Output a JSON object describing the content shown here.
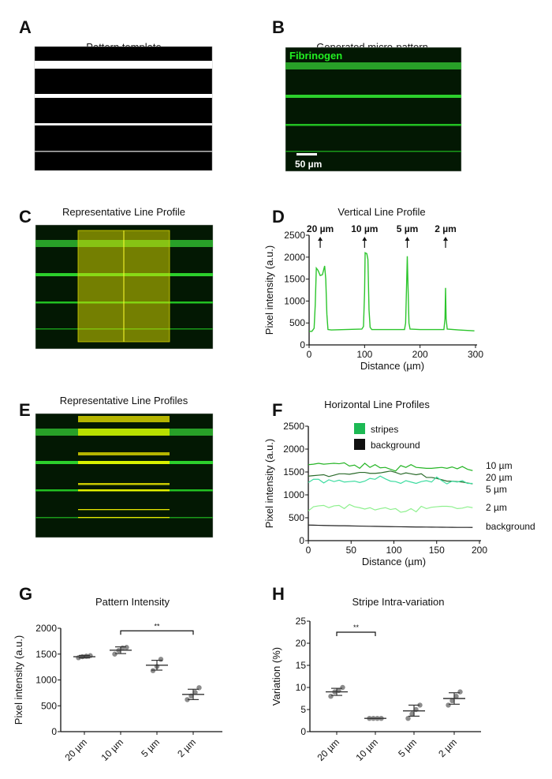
{
  "figure": {
    "panels": {
      "A": {
        "label": "A",
        "title": "Pattern template"
      },
      "B": {
        "label": "B",
        "title": "Generated micro-pattern",
        "stain_label": "Fibrinogen",
        "scale_bar_label": "50 µm"
      },
      "C": {
        "label": "C",
        "title": "Representative Line Profile"
      },
      "D": {
        "label": "D"
      },
      "E": {
        "label": "E",
        "title": "Representative Line Profiles"
      },
      "F": {
        "label": "F"
      },
      "G": {
        "label": "G"
      },
      "H": {
        "label": "H"
      }
    },
    "colors": {
      "stripe_green": "#22c322",
      "overlay_yellow": "#e6e600",
      "line_green": "#2cc52c"
    }
  },
  "chart_data": [
    {
      "id": "D",
      "type": "line",
      "title": "Vertical Line Profile",
      "xlabel": "Distance (µm)",
      "ylabel": "Pixel intensity (a.u.)",
      "xlim": [
        0,
        300
      ],
      "ylim": [
        0,
        2500
      ],
      "xticks": [
        "0",
        "100",
        "200",
        "300"
      ],
      "yticks": [
        "0",
        "500",
        "1000",
        "1500",
        "2000",
        "2500"
      ],
      "annotations": [
        {
          "text": "20 µm",
          "x": 20
        },
        {
          "text": "10 µm",
          "x": 100
        },
        {
          "text": "5 µm",
          "x": 177
        },
        {
          "text": "2 µm",
          "x": 246
        }
      ],
      "series": [
        {
          "name": "profile",
          "color": "#2cc52c",
          "x": [
            0,
            5,
            9,
            11,
            13,
            16,
            20,
            24,
            28,
            30,
            32,
            34,
            40,
            95,
            98,
            100,
            101,
            104,
            106,
            108,
            110,
            113,
            172,
            174,
            176,
            177,
            178,
            180,
            182,
            200,
            243,
            245,
            246,
            247,
            249,
            270,
            298
          ],
          "y": [
            310,
            310,
            380,
            900,
            1750,
            1700,
            1580,
            1600,
            1800,
            1500,
            700,
            350,
            340,
            360,
            420,
            1200,
            2100,
            2080,
            1950,
            800,
            400,
            350,
            350,
            500,
            1500,
            2020,
            1500,
            500,
            360,
            350,
            350,
            600,
            1300,
            600,
            360,
            340,
            320
          ]
        }
      ]
    },
    {
      "id": "F",
      "type": "line",
      "title": "Horizontal Line Profiles",
      "xlabel": "Distance (µm)",
      "ylabel": "Pixel intensity (a.u.)",
      "xlim": [
        0,
        200
      ],
      "ylim": [
        0,
        2500
      ],
      "xticks": [
        "0",
        "50",
        "100",
        "150",
        "200"
      ],
      "yticks": [
        "0",
        "500",
        "1000",
        "1500",
        "2000",
        "2500"
      ],
      "legend": {
        "placement": "top-left",
        "entries": [
          {
            "label": "stripes",
            "color": "#1db954"
          },
          {
            "label": "background",
            "color": "#111111"
          }
        ]
      },
      "x": [
        0,
        6,
        12,
        18,
        24,
        30,
        36,
        42,
        48,
        54,
        60,
        66,
        72,
        78,
        84,
        90,
        96,
        102,
        108,
        114,
        120,
        126,
        132,
        138,
        144,
        150,
        156,
        162,
        168,
        174,
        180,
        186,
        192
      ],
      "series": [
        {
          "name": "10 µm",
          "color": "#26b526",
          "values": [
            1660,
            1670,
            1690,
            1670,
            1680,
            1690,
            1680,
            1700,
            1630,
            1650,
            1580,
            1690,
            1600,
            1660,
            1590,
            1600,
            1560,
            1520,
            1640,
            1600,
            1660,
            1600,
            1590,
            1580,
            1580,
            1590,
            1600,
            1580,
            1610,
            1570,
            1620,
            1560,
            1530
          ]
        },
        {
          "name": "20 µm",
          "color": "#2b6b2b",
          "values": [
            1410,
            1420,
            1430,
            1440,
            1400,
            1430,
            1460,
            1460,
            1450,
            1470,
            1490,
            1490,
            1470,
            1470,
            1480,
            1500,
            1520,
            1490,
            1450,
            1480,
            1460,
            1440,
            1460,
            1380,
            1380,
            1360,
            1330,
            1300,
            1300,
            1290,
            1280,
            1260,
            1240
          ]
        },
        {
          "name": "5 µm",
          "color": "#3ddca0",
          "values": [
            1270,
            1340,
            1340,
            1260,
            1330,
            1290,
            1320,
            1280,
            1290,
            1300,
            1270,
            1300,
            1360,
            1340,
            1410,
            1350,
            1300,
            1290,
            1250,
            1310,
            1280,
            1250,
            1290,
            1310,
            1280,
            1390,
            1310,
            1240,
            1300,
            1280,
            1310,
            1250,
            1250
          ]
        },
        {
          "name": "2 µm",
          "color": "#8ef08e",
          "values": [
            650,
            740,
            760,
            770,
            720,
            760,
            770,
            700,
            790,
            740,
            720,
            690,
            720,
            670,
            700,
            720,
            680,
            700,
            620,
            640,
            700,
            630,
            750,
            700,
            730,
            740,
            750,
            750,
            740,
            700,
            710,
            740,
            720
          ]
        },
        {
          "name": "background",
          "color": "#222222",
          "values": [
            340,
            338,
            335,
            332,
            330,
            328,
            326,
            325,
            323,
            320,
            318,
            316,
            314,
            312,
            310,
            308,
            306,
            305,
            303,
            302,
            300,
            298,
            297,
            296,
            295,
            294,
            293,
            292,
            291,
            290,
            290,
            290,
            289
          ]
        }
      ]
    },
    {
      "id": "G",
      "type": "scatter",
      "title": "Pattern Intensity",
      "ylabel": "Pixel intensity (a.u.)",
      "ylim": [
        0,
        2000
      ],
      "yticks": [
        "0",
        "500",
        "1000",
        "1500",
        "2000"
      ],
      "categories": [
        "20 µm",
        "10 µm",
        "5 µm",
        "2 µm"
      ],
      "groups": [
        {
          "points": [
            1430,
            1450,
            1460,
            1470
          ],
          "mean": 1450,
          "err": [
            1425,
            1475
          ]
        },
        {
          "points": [
            1500,
            1570,
            1620,
            1630
          ],
          "mean": 1575,
          "err": [
            1510,
            1640
          ]
        },
        {
          "points": [
            1180,
            1260,
            1400
          ],
          "mean": 1285,
          "err": [
            1190,
            1380
          ]
        },
        {
          "points": [
            620,
            690,
            760,
            850
          ],
          "mean": 720,
          "err": [
            620,
            820
          ]
        }
      ],
      "significance": [
        {
          "from": 1,
          "to": 3,
          "y": 1950,
          "label": "**"
        }
      ]
    },
    {
      "id": "H",
      "type": "scatter",
      "title": "Stripe Intra-variation",
      "ylabel": "Variation (%)",
      "ylim": [
        0,
        25
      ],
      "yticks": [
        "0",
        "5",
        "10",
        "15",
        "20",
        "25"
      ],
      "categories": [
        "20 µm",
        "10 µm",
        "5 µm",
        "2 µm"
      ],
      "groups": [
        {
          "points": [
            8,
            9,
            9.3,
            10
          ],
          "mean": 9,
          "err": [
            8.2,
            9.8
          ]
        },
        {
          "points": [
            3,
            3,
            3,
            3
          ],
          "mean": 3,
          "err": [
            3,
            3
          ]
        },
        {
          "points": [
            3,
            4,
            5,
            6
          ],
          "mean": 4.7,
          "err": [
            3.5,
            6
          ]
        },
        {
          "points": [
            6,
            7,
            8,
            9
          ],
          "mean": 7.5,
          "err": [
            6.2,
            8.8
          ]
        }
      ],
      "significance": [
        {
          "from": 0,
          "to": 1,
          "y": 22.5,
          "label": "**"
        }
      ]
    }
  ]
}
